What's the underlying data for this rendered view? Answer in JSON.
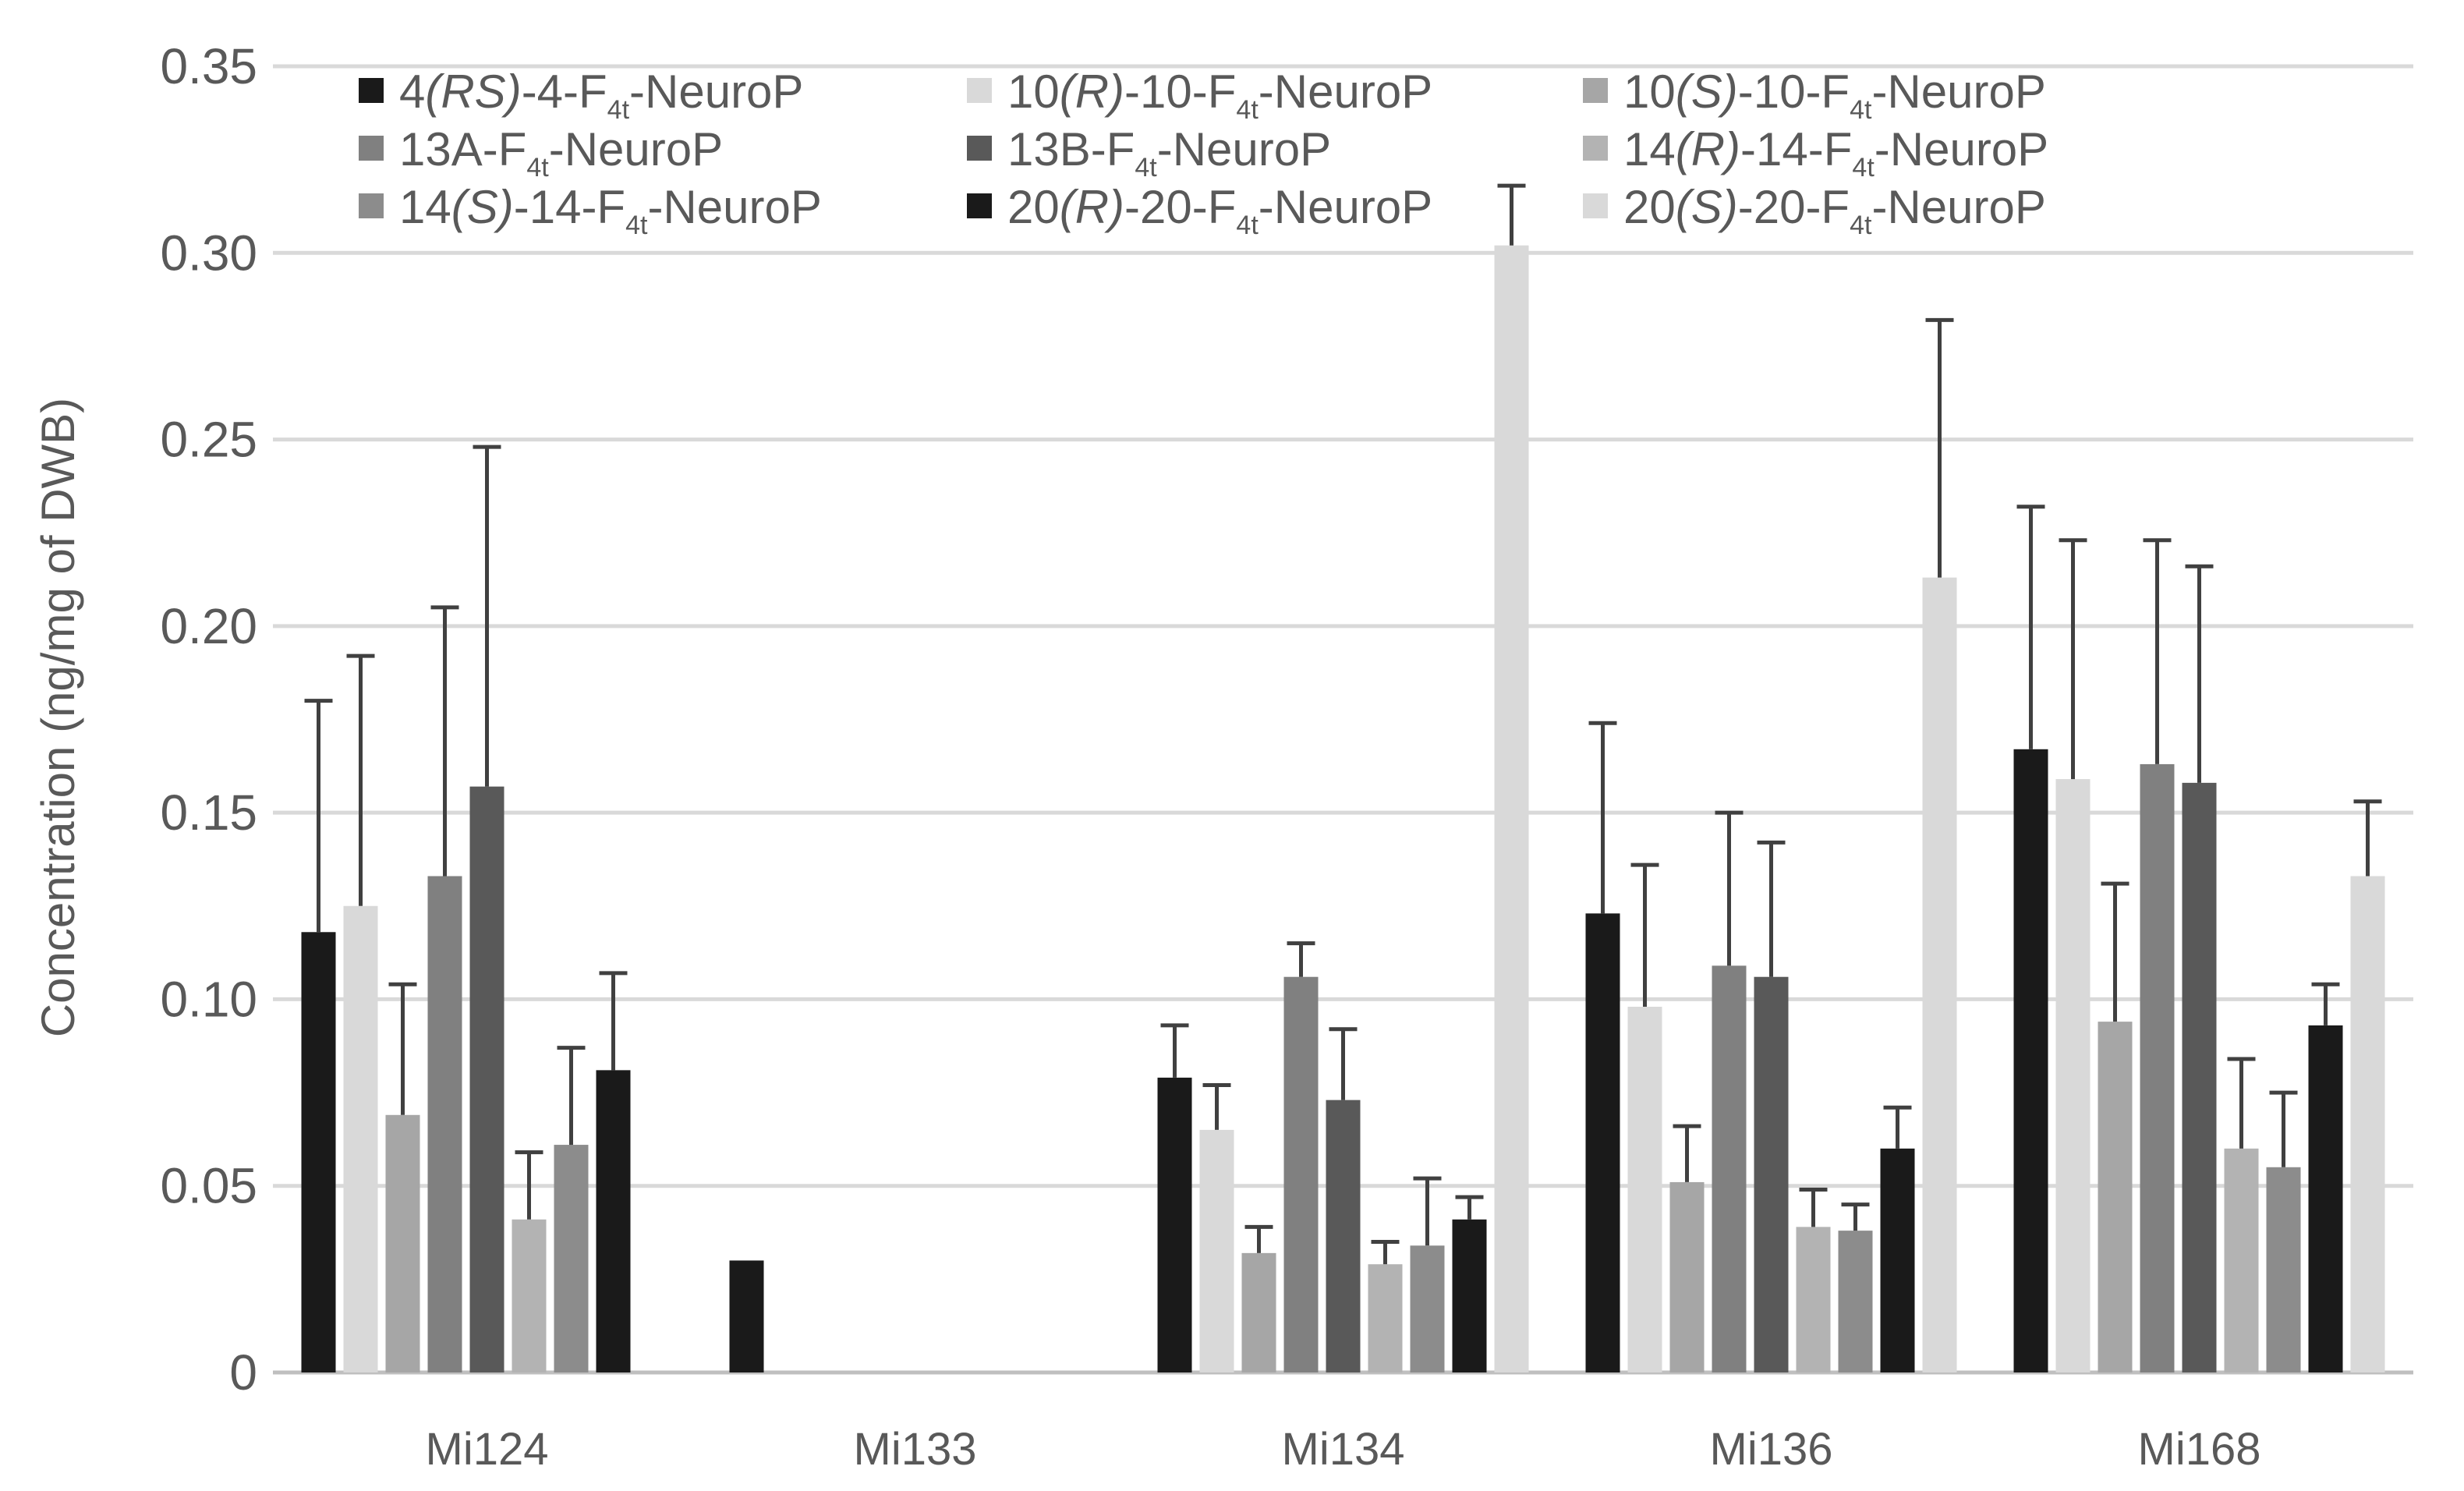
{
  "chart_data": {
    "type": "bar",
    "title": "",
    "xlabel": "",
    "ylabel": "Concentration (ng/mg of DWB)",
    "ylim": [
      0,
      0.35
    ],
    "yticks": [
      "0",
      "0.05",
      "0.10",
      "0.15",
      "0.20",
      "0.25",
      "0.30",
      "0.35"
    ],
    "ytick_values": [
      0,
      0.05,
      0.1,
      0.15,
      0.2,
      0.25,
      0.3,
      0.35
    ],
    "grid": true,
    "legend_position": "top",
    "categories": [
      "Mi124",
      "Mi133",
      "Mi134",
      "Mi136",
      "Mi168"
    ],
    "series": [
      {
        "color": "#1a1a1a",
        "legend": {
          "pre": "4",
          "ital": "(RS)",
          "mid": "-4-F",
          "sub": "4t",
          "post": "-NeuroP"
        },
        "values": [
          0.118,
          0.03,
          0.079,
          0.123,
          0.167
        ],
        "errors": [
          0.18,
          0.03,
          0.093,
          0.174,
          0.232
        ]
      },
      {
        "color": "#d9d9d9",
        "legend": {
          "pre": "10",
          "ital": "(R)",
          "mid": "-10-F",
          "sub": "4t",
          "post": "-NeuroP"
        },
        "values": [
          0.125,
          null,
          0.065,
          0.098,
          0.159
        ],
        "errors": [
          0.192,
          null,
          0.077,
          0.136,
          0.223
        ]
      },
      {
        "color": "#a6a6a6",
        "legend": {
          "pre": "10",
          "ital": "(S)",
          "mid": "-10-F",
          "sub": "4t",
          "post": "-NeuroP"
        },
        "values": [
          0.069,
          null,
          0.032,
          0.051,
          0.094
        ],
        "errors": [
          0.104,
          null,
          0.039,
          0.066,
          0.131
        ]
      },
      {
        "color": "#808080",
        "legend": {
          "pre": "13A-F",
          "ital": "",
          "mid": "",
          "sub": "4t",
          "post": "-NeuroP"
        },
        "values": [
          0.133,
          null,
          0.106,
          0.109,
          0.163
        ],
        "errors": [
          0.205,
          null,
          0.115,
          0.15,
          0.223
        ]
      },
      {
        "color": "#595959",
        "legend": {
          "pre": "13B-F",
          "ital": "",
          "mid": "",
          "sub": "4t",
          "post": "-NeuroP"
        },
        "values": [
          0.157,
          null,
          0.073,
          0.106,
          0.158
        ],
        "errors": [
          0.248,
          null,
          0.092,
          0.142,
          0.216
        ]
      },
      {
        "color": "#b3b3b3",
        "legend": {
          "pre": "14",
          "ital": "(R)",
          "mid": "-14-F",
          "sub": "4t",
          "post": "-NeuroP"
        },
        "values": [
          0.041,
          null,
          0.029,
          0.039,
          0.06
        ],
        "errors": [
          0.059,
          null,
          0.035,
          0.049,
          0.084
        ]
      },
      {
        "color": "#8c8c8c",
        "legend": {
          "pre": "14",
          "ital": "(S)",
          "mid": "-14-F",
          "sub": "4t",
          "post": "-NeuroP"
        },
        "values": [
          0.061,
          null,
          0.034,
          0.038,
          0.055
        ],
        "errors": [
          0.087,
          null,
          0.052,
          0.045,
          0.075
        ]
      },
      {
        "color": "#1a1a1a",
        "legend": {
          "pre": "20",
          "ital": "(R)",
          "mid": "-20-F",
          "sub": "4t",
          "post": "-NeuroP"
        },
        "values": [
          0.081,
          null,
          0.041,
          0.06,
          0.093
        ],
        "errors": [
          0.107,
          null,
          0.047,
          0.071,
          0.104
        ]
      },
      {
        "color": "#d9d9d9",
        "legend": {
          "pre": "20",
          "ital": "(S)",
          "mid": "-20-F",
          "sub": "4t",
          "post": "-NeuroP"
        },
        "values": [
          null,
          null,
          0.302,
          0.213,
          0.133
        ],
        "errors": [
          null,
          null,
          0.318,
          0.282,
          0.153
        ]
      }
    ]
  }
}
